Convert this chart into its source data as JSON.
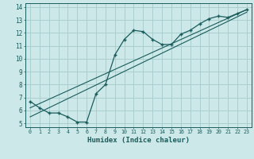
{
  "xlabel": "Humidex (Indice chaleur)",
  "ylabel": "",
  "xlim": [
    -0.5,
    23.5
  ],
  "ylim": [
    4.7,
    14.3
  ],
  "xticks": [
    0,
    1,
    2,
    3,
    4,
    5,
    6,
    7,
    8,
    9,
    10,
    11,
    12,
    13,
    14,
    15,
    16,
    17,
    18,
    19,
    20,
    21,
    22,
    23
  ],
  "yticks": [
    5,
    6,
    7,
    8,
    9,
    10,
    11,
    12,
    13,
    14
  ],
  "bg_color": "#cce8e8",
  "grid_color": "#aacece",
  "line_color": "#1a5c5c",
  "line1_x": [
    0,
    1,
    2,
    3,
    4,
    5,
    6,
    7,
    8,
    9,
    10,
    11,
    12,
    13,
    14,
    15,
    16,
    17,
    18,
    19,
    20,
    21,
    22,
    23
  ],
  "line1_y": [
    6.7,
    6.2,
    5.8,
    5.8,
    5.5,
    5.1,
    5.1,
    7.3,
    8.0,
    10.3,
    11.5,
    12.2,
    12.1,
    11.5,
    11.1,
    11.1,
    11.9,
    12.2,
    12.7,
    13.1,
    13.3,
    13.2,
    13.5,
    13.8
  ],
  "line2_x": [
    0,
    23
  ],
  "line2_y": [
    6.2,
    13.8
  ],
  "line3_x": [
    0,
    23
  ],
  "line3_y": [
    5.5,
    13.6
  ]
}
